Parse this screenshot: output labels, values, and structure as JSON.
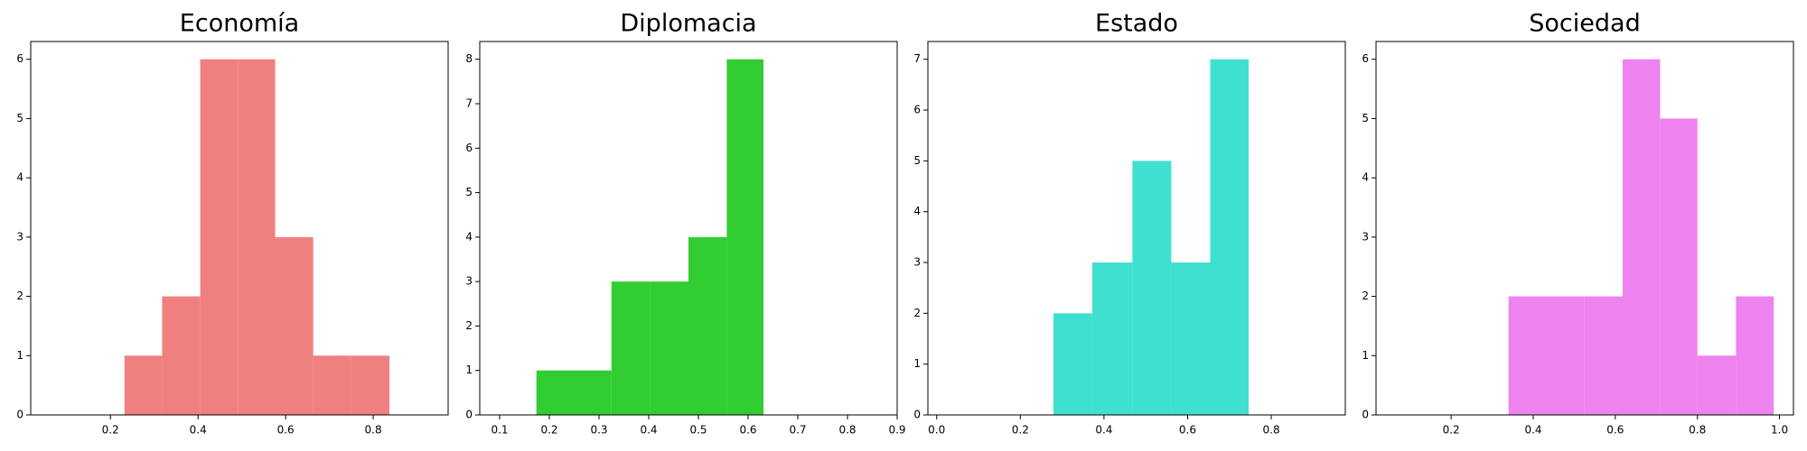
{
  "chart_data": [
    {
      "type": "histogram",
      "title": "Economía",
      "color": "#f08080",
      "bins": [
        0.232,
        0.318,
        0.405,
        0.492,
        0.576,
        0.663,
        0.75,
        0.837
      ],
      "counts": [
        1,
        2,
        6,
        6,
        3,
        1,
        1
      ],
      "xlim": [
        0.018,
        0.971
      ],
      "ylim": [
        0,
        6.3
      ],
      "xticks": [
        0.2,
        0.4,
        0.6,
        0.8
      ],
      "yticks": [
        0,
        1,
        2,
        3,
        4,
        5,
        6
      ]
    },
    {
      "type": "histogram",
      "title": "Diplomacia",
      "color": "#32cd32",
      "bins": [
        0.174,
        0.25,
        0.325,
        0.402,
        0.48,
        0.557,
        0.631
      ],
      "counts": [
        1,
        1,
        3,
        3,
        4,
        8
      ],
      "xlim": [
        0.06,
        0.9
      ],
      "ylim": [
        0,
        8.4
      ],
      "xticks": [
        0.1,
        0.2,
        0.3,
        0.4,
        0.5,
        0.6,
        0.7,
        0.8,
        0.9
      ],
      "yticks": [
        0,
        1,
        2,
        3,
        4,
        5,
        6,
        7,
        8
      ]
    },
    {
      "type": "histogram",
      "title": "Estado",
      "color": "#40e0d0",
      "bins": [
        0.279,
        0.372,
        0.468,
        0.561,
        0.654,
        0.746
      ],
      "counts": [
        2,
        3,
        5,
        3,
        7
      ],
      "xlim": [
        -0.021,
        0.977
      ],
      "ylim": [
        0,
        7.35
      ],
      "xticks": [
        {
          "value": 0,
          "label": "0.0"
        },
        0.2,
        0.4,
        0.6,
        0.8
      ],
      "yticks": [
        0,
        1,
        2,
        3,
        4,
        5,
        6,
        7
      ]
    },
    {
      "type": "histogram",
      "title": "Sociedad",
      "color": "#ee82ee",
      "bins": [
        0.34,
        0.433,
        0.525,
        0.618,
        0.709,
        0.8,
        0.894,
        0.986
      ],
      "counts": [
        2,
        2,
        2,
        6,
        5,
        1,
        2
      ],
      "xlim": [
        0.017,
        1.034
      ],
      "ylim": [
        0,
        6.3
      ],
      "xticks": [
        0.2,
        0.4,
        0.6,
        0.8,
        {
          "value": 1,
          "label": "1.0"
        }
      ],
      "yticks": [
        0,
        1,
        2,
        3,
        4,
        5,
        6
      ]
    }
  ]
}
